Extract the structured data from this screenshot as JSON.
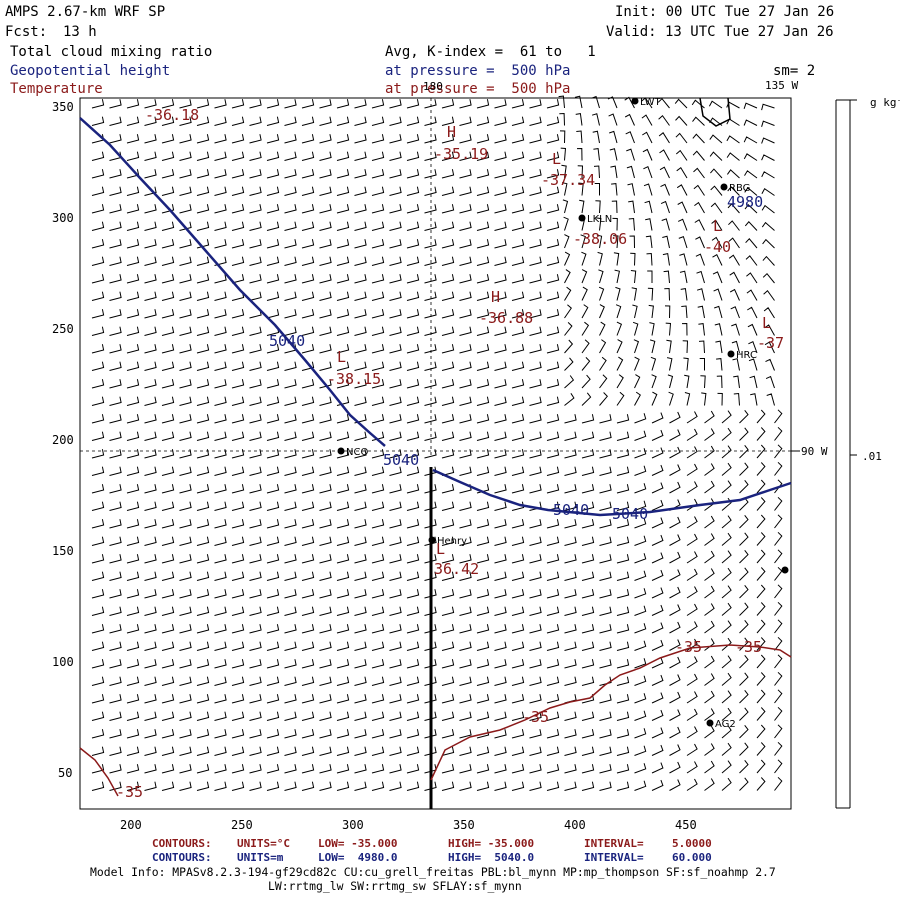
{
  "header": {
    "title": "AMPS 2.67-km WRF SP",
    "forecast_label": "Fcst:",
    "forecast_value": "13 h",
    "init": "Init: 00 UTC Tue 27 Jan 26",
    "valid": "Valid: 13 UTC Tue 27 Jan 26",
    "field1": "Total cloud mixing ratio",
    "field2": "Geopotential height",
    "field3": "Temperature",
    "avg": "Avg, K-index =  61 to   1",
    "pressure1": "at pressure =  500 hPa",
    "pressure2": "at pressure =  500 hPa",
    "sm": "sm= 2",
    "lon135": "135 W",
    "lat180": "180",
    "lon90": "90 W"
  },
  "colorbar": {
    "unit": "g kg⁻¹",
    "value": ".01"
  },
  "axes": {
    "x_ticks": [
      "200",
      "250",
      "300",
      "350",
      "400",
      "450"
    ],
    "y_ticks": [
      "350",
      "300",
      "250",
      "200",
      "150",
      "100",
      "50"
    ]
  },
  "stations": [
    {
      "name": "LWT",
      "sx": 635,
      "sy": 101
    },
    {
      "name": "RBG",
      "sx": 724,
      "sy": 187
    },
    {
      "name": "LKLN",
      "sx": 582,
      "sy": 218
    },
    {
      "name": "HRC",
      "sx": 731,
      "sy": 354
    },
    {
      "name": "NCO",
      "sx": 341,
      "sy": 451
    },
    {
      "name": "Henry",
      "sx": 432,
      "sy": 540
    },
    {
      "name": "AG2",
      "sx": 710,
      "sy": 723
    },
    {
      "name": "",
      "sx": 785,
      "sy": 570
    }
  ],
  "temp_labels": [
    {
      "text": "-36.18",
      "sx": 145,
      "sy": 108
    },
    {
      "text": "H",
      "sx": 447,
      "sy": 125
    },
    {
      "text": "-35.19",
      "sx": 434,
      "sy": 147
    },
    {
      "text": "L",
      "sx": 552,
      "sy": 152
    },
    {
      "text": "-37.34",
      "sx": 541,
      "sy": 173
    },
    {
      "text": "-38.06",
      "sx": 573,
      "sy": 232
    },
    {
      "text": "L",
      "sx": 713,
      "sy": 219
    },
    {
      "text": "-40",
      "sx": 704,
      "sy": 240
    },
    {
      "text": "H",
      "sx": 491,
      "sy": 290
    },
    {
      "text": "-36.88",
      "sx": 479,
      "sy": 311
    },
    {
      "text": "L",
      "sx": 762,
      "sy": 316
    },
    {
      "text": "-37",
      "sx": 757,
      "sy": 336
    },
    {
      "text": "L",
      "sx": 337,
      "sy": 350
    },
    {
      "text": "-38.15",
      "sx": 327,
      "sy": 372
    },
    {
      "text": "L",
      "sx": 436,
      "sy": 542
    },
    {
      "text": "36.42",
      "sx": 434,
      "sy": 562
    },
    {
      "text": "-35",
      "sx": 675,
      "sy": 640
    },
    {
      "text": "-35",
      "sx": 735,
      "sy": 640
    },
    {
      "text": "-35",
      "sx": 522,
      "sy": 710
    },
    {
      "text": "-35",
      "sx": 116,
      "sy": 785
    }
  ],
  "height_labels": [
    {
      "text": "4980",
      "sx": 727,
      "sy": 195
    },
    {
      "text": "5040",
      "sx": 269,
      "sy": 334
    },
    {
      "text": "5040",
      "sx": 383,
      "sy": 453
    },
    {
      "text": "5040",
      "sx": 553,
      "sy": 503
    },
    {
      "text": "5040",
      "sx": 612,
      "sy": 507
    }
  ],
  "footer": {
    "c1_label": "CONTOURS:",
    "c1_units": "UNITS=°C",
    "c1_low": "LOW= -35.000",
    "c1_high": "HIGH= -35.000",
    "c1_interval": "INTERVAL=",
    "c1_interval_val": "5.0000",
    "c2_label": "CONTOURS:",
    "c2_units": "UNITS=m",
    "c2_low": "LOW=  4980.0",
    "c2_high": "HIGH=  5040.0",
    "c2_interval": "INTERVAL=",
    "c2_interval_val": "60.000",
    "model1": "Model Info: MPASv8.2.3-194-gf29cd82c CU:cu_grell_freitas PBL:bl_mynn MP:mp_thompson SF:sf_noahmp 2.7",
    "model2": "LW:rrtmg_lw SW:rrtmg_sw SFLAY:sf_mynn"
  },
  "colors": {
    "temp": "#8b1a1a",
    "height": "#1a237e",
    "text_blue": "#1a237e",
    "black": "#000000"
  }
}
